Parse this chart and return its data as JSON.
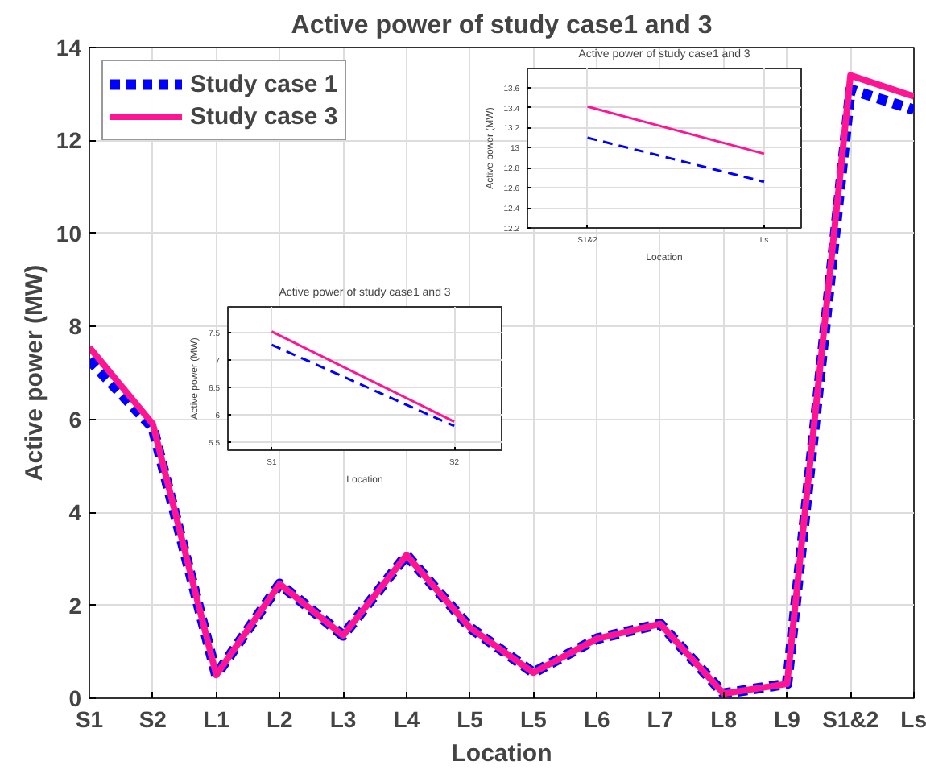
{
  "chart_data": [
    {
      "type": "line",
      "title": "Active power of study case1 and 3",
      "xlabel": "Location",
      "ylabel": "Active power (MW)",
      "categories": [
        "S1",
        "S2",
        "L1",
        "L2",
        "L3",
        "L4",
        "L5",
        "L5",
        "L6",
        "L7",
        "L8",
        "L9",
        "S1&2",
        "Ls"
      ],
      "ylim": [
        0,
        14
      ],
      "yticks": [
        0,
        2,
        4,
        6,
        8,
        10,
        12,
        14
      ],
      "grid": true,
      "legend": "top left",
      "marker": "none",
      "series": [
        {
          "name": "Study case 1",
          "color": "#0000ff",
          "line_style": "dashed",
          "values": [
            7.28,
            5.82,
            0.5,
            2.46,
            1.35,
            3.08,
            1.52,
            0.55,
            1.28,
            1.6,
            0.1,
            0.31,
            13.1,
            12.66
          ]
        },
        {
          "name": "Study case 3",
          "color": "#ff1493",
          "line_style": "solid",
          "values": [
            7.55,
            5.9,
            0.5,
            2.46,
            1.35,
            3.08,
            1.52,
            0.55,
            1.28,
            1.6,
            0.1,
            0.31,
            13.4,
            12.95
          ]
        }
      ]
    },
    {
      "type": "line",
      "title": "Active power of study case1 and 3",
      "xlabel": "Location",
      "ylabel": "Active power (MW)",
      "categories": [
        "S1",
        "S2"
      ],
      "ylim": [
        5.36,
        7.97
      ],
      "yticks": [
        5.5,
        6,
        6.5,
        7,
        7.5
      ],
      "grid": true,
      "marker": "none",
      "series": [
        {
          "color": "#0000ff",
          "line_style": "dashed",
          "values": [
            7.28,
            5.8
          ]
        },
        {
          "color": "#ff1493",
          "line_style": "solid",
          "values": [
            7.52,
            5.88
          ]
        }
      ]
    },
    {
      "type": "line",
      "title": "Active power of study case1 and 3",
      "xlabel": "Location",
      "ylabel": "Active power (MW)",
      "categories": [
        "S1&2",
        "Ls"
      ],
      "ylim": [
        12.2,
        13.79
      ],
      "yticks": [
        12.2,
        12.4,
        12.6,
        12.8,
        13,
        13.2,
        13.4,
        13.6
      ],
      "grid": true,
      "marker": "none",
      "series": [
        {
          "color": "#0000ff",
          "line_style": "dashed",
          "values": [
            13.1,
            12.66
          ]
        },
        {
          "color": "#ff1493",
          "line_style": "solid",
          "values": [
            13.41,
            12.94
          ]
        }
      ]
    }
  ]
}
